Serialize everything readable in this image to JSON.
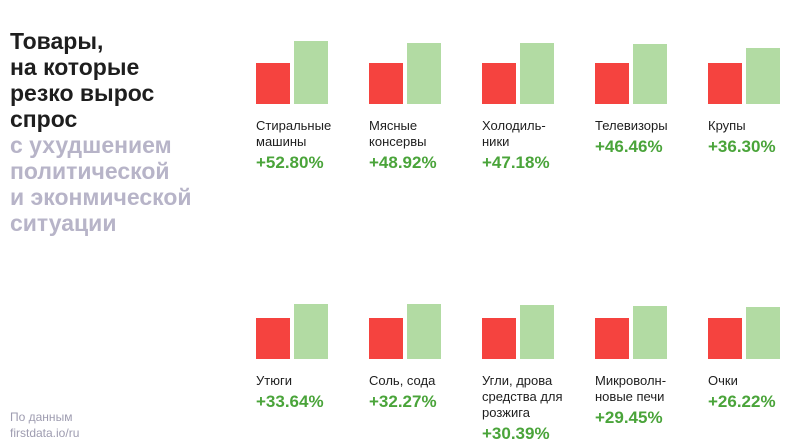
{
  "title": {
    "dark_lines": [
      "Товары,",
      "на которые",
      "резко вырос",
      "спрос"
    ],
    "light_lines": [
      "с ухудшением",
      "политической",
      "и эконмической",
      "ситуации"
    ]
  },
  "source": {
    "lines": [
      "По данным",
      "firstdata.io/ru"
    ]
  },
  "colors": {
    "before_bar": "#f5433f",
    "after_bar": "#b2dba3",
    "value_text": "#4aa43a",
    "title_dark": "#1e1e1e",
    "title_light": "#b7b4c8"
  },
  "chart_data": {
    "type": "bar",
    "unit": "%",
    "series": [
      {
        "values": [
          100,
          100,
          100,
          100,
          100,
          100,
          100,
          100,
          100,
          100
        ]
      },
      {
        "values": [
          152.8,
          148.92,
          147.18,
          146.46,
          136.3,
          133.64,
          132.27,
          130.39,
          129.45,
          126.22
        ]
      }
    ],
    "items": [
      {
        "label_lines": [
          "Стиральные",
          "машины"
        ],
        "value": "+52.80%",
        "change": 52.8
      },
      {
        "label_lines": [
          "Мясные",
          "консервы"
        ],
        "value": "+48.92%",
        "change": 48.92
      },
      {
        "label_lines": [
          "Холодиль-",
          "ники"
        ],
        "value": "+47.18%",
        "change": 47.18
      },
      {
        "label_lines": [
          "Телевизоры"
        ],
        "value": "+46.46%",
        "change": 46.46
      },
      {
        "label_lines": [
          "Крупы"
        ],
        "value": "+36.30%",
        "change": 36.3
      },
      {
        "label_lines": [
          "Утюги"
        ],
        "value": "+33.64%",
        "change": 33.64
      },
      {
        "label_lines": [
          "Соль, сода"
        ],
        "value": "+32.27%",
        "change": 32.27
      },
      {
        "label_lines": [
          "Угли, дрова",
          "средства для",
          "розжига"
        ],
        "value": "+30.39%",
        "change": 30.39
      },
      {
        "label_lines": [
          "Микроволн-",
          "новые печи"
        ],
        "value": "+29.45%",
        "change": 29.45
      },
      {
        "label_lines": [
          "Очки"
        ],
        "value": "+26.22%",
        "change": 26.22
      }
    ]
  }
}
